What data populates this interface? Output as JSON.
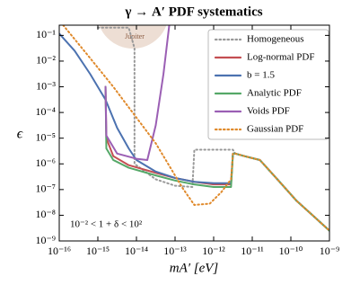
{
  "chart_data": {
    "type": "line",
    "title": "γ → A′ PDF systematics",
    "x_label": "mA′ [eV]",
    "y_label": "ϵ",
    "annotation": "10⁻² < 1 + δ < 10²",
    "region_label": "Jupiter",
    "log_x": true,
    "log_y": true,
    "legend": "upper right",
    "xlim": [
      1e-16,
      1e-09
    ],
    "ylim": [
      1e-09,
      0.25
    ],
    "xticks": [
      {
        "value": 1e-16,
        "label": "10⁻¹⁶"
      },
      {
        "value": 1e-15,
        "label": "10⁻¹⁵"
      },
      {
        "value": 1e-14,
        "label": "10⁻¹⁴"
      },
      {
        "value": 1e-13,
        "label": "10⁻¹³"
      },
      {
        "value": 1e-12,
        "label": "10⁻¹²"
      },
      {
        "value": 1e-11,
        "label": "10⁻¹¹"
      },
      {
        "value": 1e-10,
        "label": "10⁻¹⁰"
      },
      {
        "value": 1e-09,
        "label": "10⁻⁹"
      }
    ],
    "yticks": [
      {
        "value": 1e-09,
        "label": "10⁻⁹"
      },
      {
        "value": 1e-08,
        "label": "10⁻⁸"
      },
      {
        "value": 1e-07,
        "label": "10⁻⁷"
      },
      {
        "value": 1e-06,
        "label": "10⁻⁶"
      },
      {
        "value": 1e-05,
        "label": "10⁻⁵"
      },
      {
        "value": 0.0001,
        "label": "10⁻⁴"
      },
      {
        "value": 0.001,
        "label": "10⁻³"
      },
      {
        "value": 0.01,
        "label": "10⁻²"
      },
      {
        "value": 0.1,
        "label": "10⁻¹"
      }
    ],
    "series": [
      {
        "name": "Homogeneous",
        "color": "#999999",
        "dash": "dotted",
        "x": [
          1e-15,
          6.31e-15,
          8.91e-15,
          8.91e-15,
          3.16e-14,
          1e-13,
          2.82e-13,
          3.16e-13,
          3.16e-12,
          3.63e-12,
          6.31e-12,
          1.58e-11,
          4.47e-11,
          1.41e-10,
          3.98e-10,
          1e-09
        ],
        "values": [
          0.2,
          0.2,
          0.0316,
          1e-06,
          2.51e-07,
          1.41e-07,
          1.26e-07,
          3.55e-06,
          3.55e-06,
          2.51e-06,
          2e-06,
          1.41e-06,
          2.51e-07,
          3.63e-08,
          8.91e-09,
          2.51e-09
        ]
      },
      {
        "name": "Log-normal PDF",
        "color": "#c44e52",
        "dash": "solid",
        "x": [
          1.58e-15,
          1.66e-15,
          2.51e-15,
          6.31e-15,
          3.16e-14,
          1e-13,
          3.16e-13,
          1e-12,
          2.82e-12,
          3.16e-12,
          3.63e-12,
          6.31e-12,
          1.58e-11,
          4.47e-11,
          1.41e-10,
          3.98e-10,
          1e-09
        ],
        "values": [
          0.001,
          1e-05,
          2e-06,
          8.91e-07,
          4.47e-07,
          2.82e-07,
          2e-07,
          1.58e-07,
          1.58e-07,
          2.51e-06,
          2.51e-06,
          2e-06,
          1.41e-06,
          2.51e-07,
          3.63e-08,
          8.91e-09,
          2.51e-09
        ]
      },
      {
        "name": "b = 1.5",
        "color": "#4c72b0",
        "dash": "solid",
        "x": [
          1e-16,
          2.51e-16,
          6.31e-16,
          1.58e-15,
          3.16e-15,
          6.31e-15,
          1e-14,
          3.16e-14,
          1e-13,
          3.16e-13,
          1e-12,
          2.82e-12,
          3.16e-12,
          3.63e-12,
          6.31e-12,
          1.58e-11,
          4.47e-11,
          1.41e-10,
          3.98e-10,
          1e-09
        ],
        "values": [
          0.117,
          0.0251,
          0.00316,
          0.000316,
          2.51e-05,
          3.98e-06,
          1.41e-06,
          5.01e-07,
          2.82e-07,
          2e-07,
          1.78e-07,
          1.78e-07,
          2.51e-06,
          2.51e-06,
          2e-06,
          1.41e-06,
          2.51e-07,
          3.63e-08,
          8.91e-09,
          2.51e-09
        ]
      },
      {
        "name": "Analytic PDF",
        "color": "#55a868",
        "dash": "solid",
        "x": [
          1.58e-15,
          1.66e-15,
          2.51e-15,
          6.31e-15,
          3.16e-14,
          1e-13,
          3.16e-13,
          1e-12,
          2.82e-12,
          3.16e-12,
          3.63e-12,
          6.31e-12,
          1.58e-11,
          4.47e-11,
          1.41e-10,
          3.98e-10,
          1e-09
        ],
        "values": [
          0.001,
          3.98e-06,
          1.41e-06,
          7.08e-07,
          3.55e-07,
          2.24e-07,
          1.58e-07,
          1.26e-07,
          1.26e-07,
          2.51e-06,
          2.51e-06,
          2e-06,
          1.41e-06,
          2.51e-07,
          3.63e-08,
          8.91e-09,
          2.51e-09
        ]
      },
      {
        "name": "Voids PDF",
        "color": "#9b5fb4",
        "dash": "solid",
        "x": [
          1.58e-15,
          1.66e-15,
          3.16e-15,
          1e-14,
          1.91e-14,
          3.16e-14,
          5.01e-14,
          7.08e-14
        ],
        "values": [
          0.001,
          1.26e-05,
          2.51e-06,
          1.58e-06,
          1.41e-06,
          3.16e-05,
          0.00316,
          0.251
        ]
      },
      {
        "name": "Gaussian PDF",
        "color": "#e08a2c",
        "dash": "dotted",
        "x": [
          1.26e-16,
          5.01e-16,
          2.51e-15,
          1e-14,
          3.16e-14,
          7.94e-14,
          1.58e-13,
          3.16e-13,
          7.94e-13,
          1.58e-12,
          2.82e-12,
          3.16e-12,
          3.63e-12,
          6.31e-12,
          1.58e-11,
          4.47e-11,
          1.41e-10,
          3.98e-10,
          1e-09
        ],
        "values": [
          0.251,
          0.02,
          0.001,
          6.31e-05,
          6.31e-06,
          6.31e-07,
          1.12e-07,
          2.51e-08,
          2.82e-08,
          7.94e-08,
          2.51e-07,
          2.51e-06,
          2.51e-06,
          2e-06,
          1.41e-06,
          2.51e-07,
          3.63e-08,
          8.91e-09,
          2.51e-09
        ]
      }
    ]
  }
}
